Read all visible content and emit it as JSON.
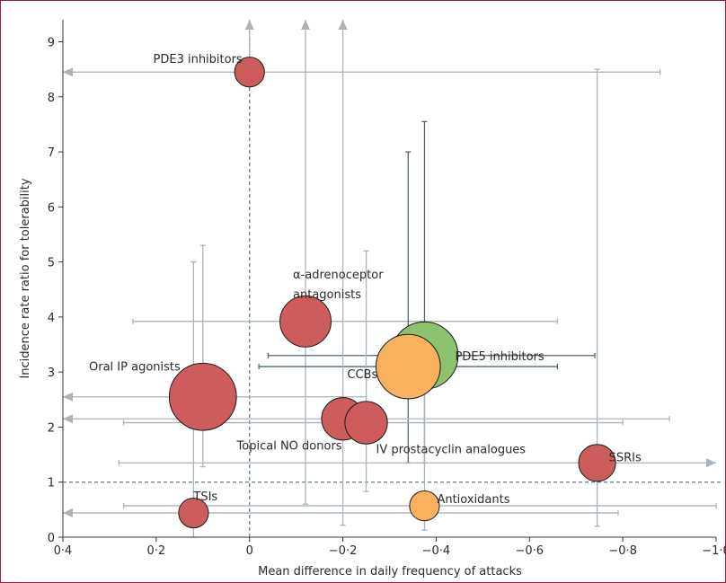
{
  "chart_data": {
    "type": "scatter",
    "title": "",
    "xlabel": "Mean difference in daily frequency of attacks",
    "ylabel": "Incidence rate ratio for tolerability",
    "xlim": [
      0.4,
      -1.0
    ],
    "ylim": [
      0,
      9.4
    ],
    "x_reversed": true,
    "x_ticks": [
      0.4,
      0.2,
      0,
      -0.2,
      -0.4,
      -0.6,
      -0.8,
      -1.0
    ],
    "x_tick_labels": [
      "0·4",
      "0·2",
      "0",
      "−0·2",
      "−0·4",
      "−0·6",
      "−0·8",
      "−1·0"
    ],
    "y_ticks": [
      0,
      1,
      2,
      3,
      4,
      5,
      6,
      7,
      8,
      9
    ],
    "y_tick_labels": [
      "0",
      "1",
      "2",
      "3",
      "4",
      "5",
      "6",
      "7",
      "8",
      "9"
    ],
    "reference_lines": {
      "x": 0,
      "y": 1
    },
    "colors": {
      "red": "#cd5c5c",
      "green": "#8dc26f",
      "orange": "#f9b160",
      "ci_grey": "#a9b3bb",
      "ci_dark": "#4e6673",
      "ref": "#5c7e8c"
    },
    "points": [
      {
        "label": "PDE3 inhibitors",
        "x": 0.0,
        "y": 8.45,
        "size": 1,
        "color": "red",
        "xci": [
          0.4,
          -0.88
        ],
        "xci_lo_open": true,
        "yci": [
          8.45,
          9.4
        ],
        "yci_hi_open": true,
        "ci": "grey"
      },
      {
        "label": "α-adrenoceptor antagonists",
        "x": -0.12,
        "y": 3.92,
        "size": 5,
        "color": "red",
        "xci": [
          0.25,
          -0.66
        ],
        "yci": [
          0.6,
          9.4
        ],
        "yci_hi_open": true,
        "ci": "grey"
      },
      {
        "label": "PDE5 inhibitors",
        "x": -0.375,
        "y": 3.3,
        "size": 10,
        "color": "green",
        "xci": [
          -0.04,
          -0.74
        ],
        "yci": [
          1.35,
          7.55
        ],
        "ci": "dark"
      },
      {
        "label": "CCBs",
        "x": -0.34,
        "y": 3.1,
        "size": 9,
        "color": "orange",
        "xci": [
          -0.02,
          -0.66
        ],
        "yci": [
          1.35,
          7.0
        ],
        "ci": "dark"
      },
      {
        "label": "Oral IP agonists",
        "x": 0.1,
        "y": 2.55,
        "size": 10,
        "color": "red",
        "xci": [
          0.4,
          -0.25
        ],
        "xci_lo_open": true,
        "yci": [
          1.28,
          5.3
        ],
        "ci": "grey"
      },
      {
        "label": "Topical NO donors",
        "x": -0.2,
        "y": 2.15,
        "size": 3,
        "color": "red",
        "xci": [
          0.4,
          -0.9
        ],
        "xci_lo_open": true,
        "yci": [
          0.22,
          9.4
        ],
        "yci_hi_open": true,
        "ci": "grey"
      },
      {
        "label": "IV prostacyclin analogues",
        "x": -0.25,
        "y": 2.08,
        "size": 3,
        "color": "red",
        "xci": [
          0.27,
          -0.8
        ],
        "yci": [
          0.83,
          5.2
        ],
        "ci": "grey"
      },
      {
        "label": "SSRIs",
        "x": -0.745,
        "y": 1.35,
        "size": 2,
        "color": "red",
        "xci": [
          0.28,
          -1.0
        ],
        "xci_hi_open": true,
        "yci": [
          0.2,
          8.5
        ],
        "ci": "grey"
      },
      {
        "label": "TSIs",
        "x": 0.12,
        "y": 0.44,
        "size": 1,
        "color": "red",
        "xci": [
          0.4,
          -0.79
        ],
        "xci_lo_open": true,
        "yci": [
          0.0,
          5.0
        ],
        "ci": "grey"
      },
      {
        "label": "Antioxidants",
        "x": -0.375,
        "y": 0.57,
        "size": 1,
        "color": "orange",
        "xci": [
          0.27,
          -1.0
        ],
        "yci": [
          0.13,
          2.7
        ],
        "ci": "grey"
      }
    ]
  }
}
